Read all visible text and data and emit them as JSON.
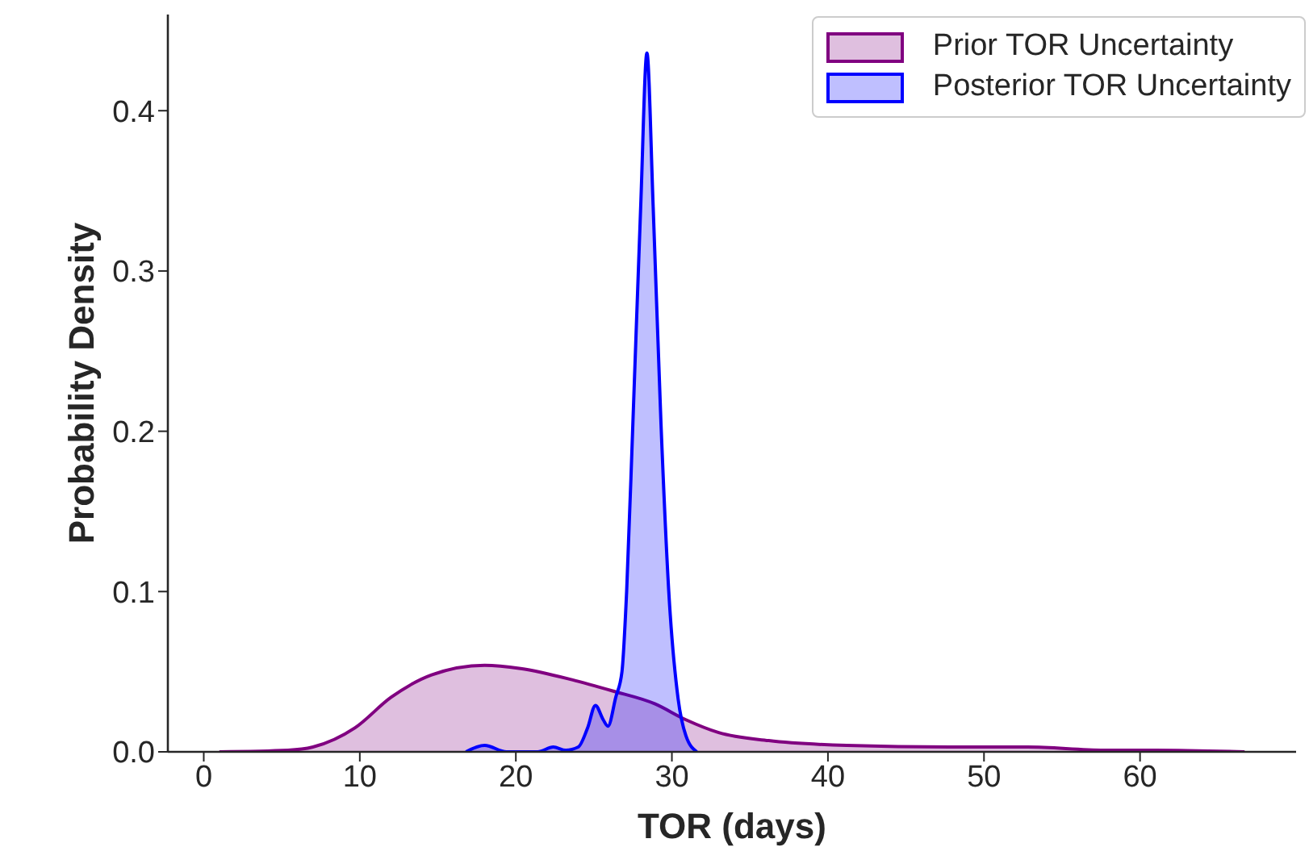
{
  "chart_data": {
    "type": "area",
    "xlabel": "TOR (days)",
    "ylabel": "Probability Density",
    "xlim": [
      -2.3,
      70
    ],
    "xticks": [
      0,
      10,
      20,
      30,
      40,
      50,
      60
    ],
    "ylim": [
      0,
      0.46
    ],
    "yticks": [
      {
        "value": 0,
        "label": "0.0"
      },
      0.1,
      0.2,
      0.3,
      0.4
    ],
    "legend": "top right",
    "series": [
      {
        "name": "Prior TOR Uncertainty",
        "color": "#800080",
        "x": [
          1,
          5.4,
          7,
          9.7,
          12,
          14.6,
          18,
          20.3,
          23.6,
          26.2,
          28.9,
          30.9,
          33,
          36.2,
          41.2,
          47.8,
          52.8,
          57.7,
          61,
          66.7
        ],
        "values": [
          0,
          0.001,
          0.003,
          0.015,
          0.034,
          0.048,
          0.054,
          0.052,
          0.045,
          0.038,
          0.03,
          0.02,
          0.012,
          0.007,
          0.004,
          0.003,
          0.003,
          0.001,
          0.001,
          0
        ]
      },
      {
        "name": "Posterior TOR Uncertainty",
        "color": "#0000ff",
        "x": [
          16.8,
          18,
          19.4,
          21.4,
          22.4,
          23.2,
          24,
          24.6,
          25.1,
          25.6,
          25.9,
          26.4,
          26.8,
          27.1,
          27.5,
          28,
          28.4,
          28.8,
          29.3,
          29.8,
          30.4,
          30.9,
          31.6
        ],
        "values": [
          0,
          0.004,
          0,
          0,
          0.003,
          0.001,
          0.003,
          0.015,
          0.029,
          0.02,
          0.016,
          0.034,
          0.05,
          0.1,
          0.205,
          0.34,
          0.436,
          0.34,
          0.205,
          0.1,
          0.033,
          0.01,
          0
        ]
      }
    ]
  }
}
